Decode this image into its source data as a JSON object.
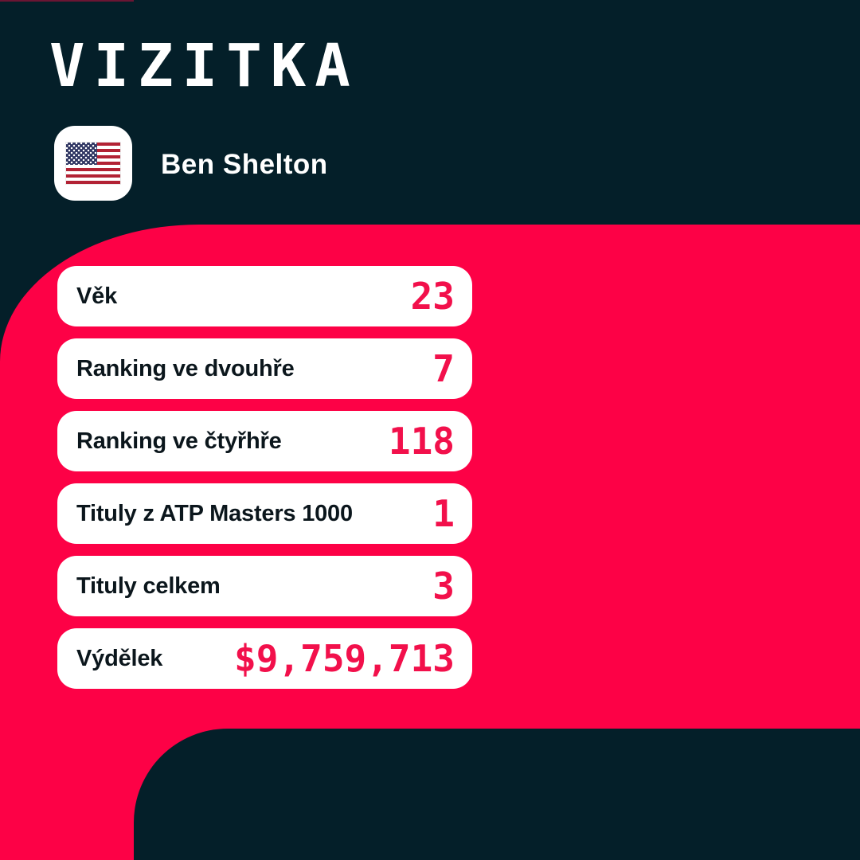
{
  "header": {
    "title": "VIZITKA"
  },
  "player": {
    "name": "Ben Shelton",
    "flag_icon": "usa-flag-icon"
  },
  "stats": [
    {
      "label": "Věk",
      "value": "23"
    },
    {
      "label": "Ranking ve dvouhře",
      "value": "7"
    },
    {
      "label": "Ranking ve čtyřhře",
      "value": "118"
    },
    {
      "label": "Tituly z ATP Masters 1000",
      "value": "1"
    },
    {
      "label": "Tituly celkem",
      "value": "3"
    },
    {
      "label": "Výdělek",
      "value": "$9,759,713"
    }
  ],
  "colors": {
    "background_pink": "#fd0146",
    "background_navy": "#041f29",
    "value_pink": "#f2104b",
    "card_white": "#ffffff",
    "label_dark": "#0b161c",
    "flag_red": "#b22234",
    "flag_blue": "#2e3561"
  }
}
